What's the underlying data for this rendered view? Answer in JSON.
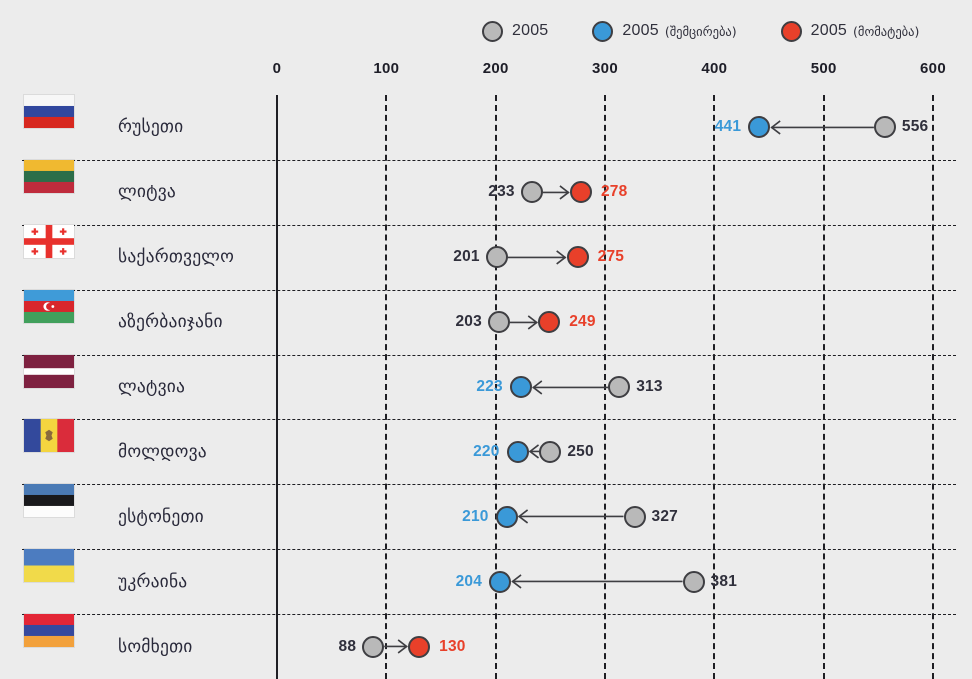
{
  "legend": {
    "items": [
      {
        "year": "2005",
        "qualifier": "",
        "color_key": "base"
      },
      {
        "year": "2005",
        "qualifier": "(შემცირება)",
        "color_key": "decrease"
      },
      {
        "year": "2005",
        "qualifier": "(მომატება)",
        "color_key": "increase"
      }
    ]
  },
  "colors": {
    "background": "#ececec",
    "grid": "#1f1f24",
    "dot_base": "#b9b9b9",
    "dot_decrease": "#3a99d8",
    "dot_increase": "#e8402a",
    "dot_stroke": "#3e3e42",
    "arrow": "#3e3e42",
    "text_dark": "#30303c",
    "axis_text": "#1e1e28"
  },
  "chart_data": {
    "type": "dumbbell",
    "title": "",
    "xlim": [
      0,
      600
    ],
    "x_ticks": [
      0,
      100,
      200,
      300,
      400,
      500,
      600
    ],
    "grid": "dashed",
    "legend_position": "top",
    "legend": [
      "2005",
      "2005 (შემცირება)",
      "2005 (მომატება)"
    ],
    "rows": [
      {
        "country": "რუსეთი",
        "flag": "russia",
        "start": 556,
        "end": 441,
        "change": "decrease"
      },
      {
        "country": "ლიტვა",
        "flag": "lithuania",
        "start": 233,
        "end": 278,
        "change": "increase"
      },
      {
        "country": "საქართველო",
        "flag": "georgia",
        "start": 201,
        "end": 275,
        "change": "increase"
      },
      {
        "country": "აზერბაიჯანი",
        "flag": "azerbaijan",
        "start": 203,
        "end": 249,
        "change": "increase"
      },
      {
        "country": "ლატვია",
        "flag": "latvia",
        "start": 313,
        "end": 223,
        "change": "decrease"
      },
      {
        "country": "მოლდოვა",
        "flag": "moldova",
        "start": 250,
        "end": 220,
        "change": "decrease"
      },
      {
        "country": "ესტონეთი",
        "flag": "estonia",
        "start": 327,
        "end": 210,
        "change": "decrease"
      },
      {
        "country": "უკრაინა",
        "flag": "ukraine",
        "start": 381,
        "end": 204,
        "change": "decrease"
      },
      {
        "country": "სომხეთი",
        "flag": "armenia",
        "start": 88,
        "end": 130,
        "change": "increase"
      }
    ]
  }
}
